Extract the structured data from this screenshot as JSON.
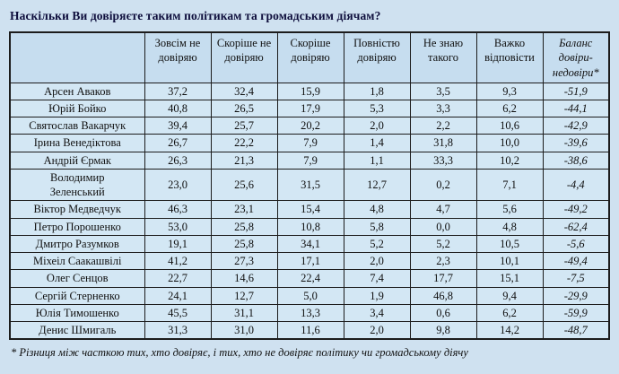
{
  "title": "Наскільки Ви довіряєте таким політикам та громадським діячам?",
  "footnote": "* Різниця між часткою тих, хто довіряє, і тих, хто не довіряє політику чи громадському діячу",
  "colors": {
    "background": "#cfe1f0",
    "cell_bg": "#d3e7f4",
    "header_bg": "#c6ddef",
    "border": "#1c1c1c",
    "title_color": "#0e0e3c",
    "text": "#101010"
  },
  "chart_data": {
    "type": "table",
    "columns": [
      "",
      "Зовсім не довіряю",
      "Скоріше не довіряю",
      "Скоріше довіряю",
      "Повністю довіряю",
      "Не знаю такого",
      "Важко відповісти",
      "Баланс довіри-недовіри*"
    ],
    "rows": [
      {
        "name": "Арсен Аваков",
        "values": [
          "37,2",
          "32,4",
          "15,9",
          "1,8",
          "3,5",
          "9,3",
          "-51,9"
        ]
      },
      {
        "name": "Юрій Бойко",
        "values": [
          "40,8",
          "26,5",
          "17,9",
          "5,3",
          "3,3",
          "6,2",
          "-44,1"
        ]
      },
      {
        "name": "Святослав Вакарчук",
        "values": [
          "39,4",
          "25,7",
          "20,2",
          "2,0",
          "2,2",
          "10,6",
          "-42,9"
        ]
      },
      {
        "name": "Ірина Венедіктова",
        "values": [
          "26,7",
          "22,2",
          "7,9",
          "1,4",
          "31,8",
          "10,0",
          "-39,6"
        ]
      },
      {
        "name": "Андрій Єрмак",
        "values": [
          "26,3",
          "21,3",
          "7,9",
          "1,1",
          "33,3",
          "10,2",
          "-38,6"
        ]
      },
      {
        "name": "Володимир Зеленський",
        "values": [
          "23,0",
          "25,6",
          "31,5",
          "12,7",
          "0,2",
          "7,1",
          "-4,4"
        ]
      },
      {
        "name": "Віктор Медведчук",
        "values": [
          "46,3",
          "23,1",
          "15,4",
          "4,8",
          "4,7",
          "5,6",
          "-49,2"
        ]
      },
      {
        "name": "Петро Порошенко",
        "values": [
          "53,0",
          "25,8",
          "10,8",
          "5,8",
          "0,0",
          "4,8",
          "-62,4"
        ]
      },
      {
        "name": "Дмитро Разумков",
        "values": [
          "19,1",
          "25,8",
          "34,1",
          "5,2",
          "5,2",
          "10,5",
          "-5,6"
        ]
      },
      {
        "name": "Міхеіл Саакашвілі",
        "values": [
          "41,2",
          "27,3",
          "17,1",
          "2,0",
          "2,3",
          "10,1",
          "-49,4"
        ]
      },
      {
        "name": "Олег Сенцов",
        "values": [
          "22,7",
          "14,6",
          "22,4",
          "7,4",
          "17,7",
          "15,1",
          "-7,5"
        ]
      },
      {
        "name": "Сергій Стерненко",
        "values": [
          "24,1",
          "12,7",
          "5,0",
          "1,9",
          "46,8",
          "9,4",
          "-29,9"
        ]
      },
      {
        "name": "Юлія Тимошенко",
        "values": [
          "45,5",
          "31,1",
          "13,3",
          "3,4",
          "0,6",
          "6,2",
          "-59,9"
        ]
      },
      {
        "name": "Денис Шмигаль",
        "values": [
          "31,3",
          "31,0",
          "11,6",
          "2,0",
          "9,8",
          "14,2",
          "-48,7"
        ]
      }
    ]
  }
}
